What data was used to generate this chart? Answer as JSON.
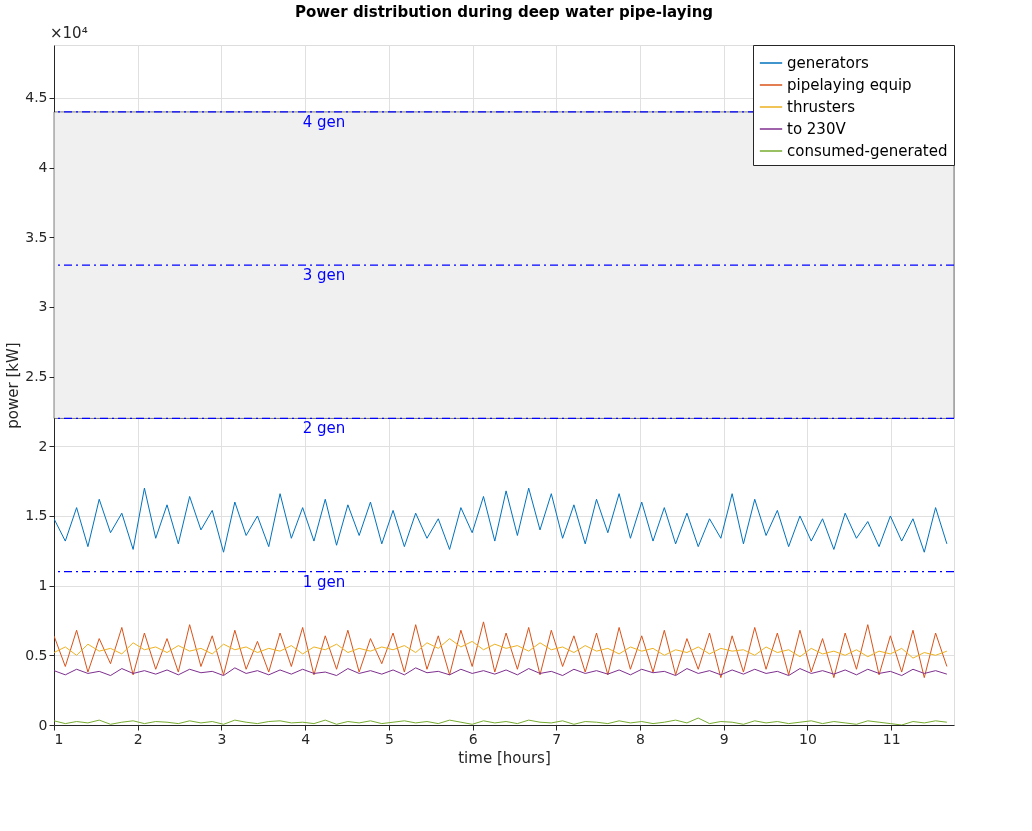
{
  "chart_data": {
    "type": "line",
    "title": "Power distribution during deep water pipe-laying",
    "xlabel": "time [hours]",
    "ylabel": "power [kW]",
    "annotations": [
      "×10⁴"
    ],
    "x": [
      1,
      1.135,
      1.27,
      1.405,
      1.54,
      1.675,
      1.81,
      1.945,
      2.08,
      2.215,
      2.35,
      2.485,
      2.62,
      2.755,
      2.89,
      3.025,
      3.16,
      3.295,
      3.43,
      3.565,
      3.7,
      3.835,
      3.97,
      4.105,
      4.24,
      4.375,
      4.51,
      4.645,
      4.78,
      4.915,
      5.05,
      5.185,
      5.32,
      5.455,
      5.59,
      5.725,
      5.86,
      5.995,
      6.13,
      6.265,
      6.4,
      6.535,
      6.67,
      6.805,
      6.94,
      7.075,
      7.21,
      7.345,
      7.48,
      7.615,
      7.75,
      7.885,
      8.02,
      8.155,
      8.29,
      8.425,
      8.56,
      8.695,
      8.83,
      8.965,
      9.1,
      9.235,
      9.37,
      9.505,
      9.64,
      9.775,
      9.91,
      10.045,
      10.18,
      10.315,
      10.45,
      10.585,
      10.72,
      10.855,
      10.99,
      11.125,
      11.26,
      11.395,
      11.53,
      11.665
    ],
    "series": [
      {
        "name": "generators",
        "color": "#0072bd",
        "values": [
          1.48,
          1.32,
          1.56,
          1.28,
          1.62,
          1.38,
          1.52,
          1.26,
          1.7,
          1.34,
          1.58,
          1.3,
          1.64,
          1.4,
          1.54,
          1.24,
          1.6,
          1.36,
          1.5,
          1.28,
          1.66,
          1.34,
          1.56,
          1.32,
          1.62,
          1.29,
          1.58,
          1.36,
          1.6,
          1.3,
          1.54,
          1.28,
          1.52,
          1.34,
          1.48,
          1.26,
          1.56,
          1.38,
          1.64,
          1.32,
          1.68,
          1.36,
          1.7,
          1.4,
          1.66,
          1.34,
          1.58,
          1.3,
          1.62,
          1.38,
          1.66,
          1.34,
          1.6,
          1.32,
          1.56,
          1.3,
          1.52,
          1.28,
          1.48,
          1.34,
          1.66,
          1.3,
          1.62,
          1.36,
          1.54,
          1.28,
          1.5,
          1.32,
          1.48,
          1.26,
          1.52,
          1.34,
          1.46,
          1.28,
          1.5,
          1.32,
          1.48,
          1.24,
          1.56,
          1.3
        ]
      },
      {
        "name": "pipelaying equip",
        "color": "#d95319",
        "values": [
          0.64,
          0.42,
          0.68,
          0.38,
          0.62,
          0.44,
          0.7,
          0.36,
          0.66,
          0.4,
          0.62,
          0.38,
          0.72,
          0.42,
          0.64,
          0.36,
          0.68,
          0.4,
          0.6,
          0.38,
          0.66,
          0.42,
          0.7,
          0.36,
          0.64,
          0.4,
          0.68,
          0.38,
          0.62,
          0.44,
          0.66,
          0.38,
          0.72,
          0.4,
          0.64,
          0.36,
          0.68,
          0.42,
          0.74,
          0.38,
          0.66,
          0.4,
          0.7,
          0.36,
          0.68,
          0.42,
          0.64,
          0.38,
          0.66,
          0.36,
          0.7,
          0.4,
          0.64,
          0.38,
          0.68,
          0.36,
          0.62,
          0.4,
          0.66,
          0.34,
          0.64,
          0.38,
          0.7,
          0.4,
          0.66,
          0.36,
          0.68,
          0.38,
          0.62,
          0.34,
          0.66,
          0.4,
          0.72,
          0.36,
          0.64,
          0.38,
          0.68,
          0.34,
          0.66,
          0.42
        ]
      },
      {
        "name": "thrusters",
        "color": "#edb120",
        "values": [
          0.52,
          0.56,
          0.5,
          0.58,
          0.53,
          0.55,
          0.51,
          0.59,
          0.54,
          0.56,
          0.52,
          0.57,
          0.53,
          0.55,
          0.51,
          0.58,
          0.54,
          0.56,
          0.52,
          0.55,
          0.53,
          0.57,
          0.51,
          0.56,
          0.54,
          0.58,
          0.52,
          0.55,
          0.53,
          0.56,
          0.54,
          0.57,
          0.52,
          0.59,
          0.55,
          0.62,
          0.56,
          0.6,
          0.54,
          0.58,
          0.55,
          0.57,
          0.53,
          0.59,
          0.54,
          0.56,
          0.52,
          0.57,
          0.53,
          0.55,
          0.51,
          0.56,
          0.53,
          0.55,
          0.5,
          0.54,
          0.52,
          0.56,
          0.51,
          0.55,
          0.53,
          0.54,
          0.5,
          0.56,
          0.52,
          0.54,
          0.49,
          0.55,
          0.51,
          0.53,
          0.5,
          0.54,
          0.49,
          0.53,
          0.51,
          0.55,
          0.48,
          0.52,
          0.5,
          0.53
        ]
      },
      {
        "name": "to 230V",
        "color": "#7e2f8e",
        "values": [
          0.39,
          0.36,
          0.4,
          0.37,
          0.385,
          0.355,
          0.405,
          0.37,
          0.39,
          0.365,
          0.395,
          0.36,
          0.4,
          0.375,
          0.385,
          0.355,
          0.41,
          0.37,
          0.39,
          0.36,
          0.395,
          0.365,
          0.4,
          0.37,
          0.38,
          0.355,
          0.405,
          0.37,
          0.39,
          0.365,
          0.395,
          0.36,
          0.41,
          0.375,
          0.385,
          0.36,
          0.4,
          0.37,
          0.39,
          0.365,
          0.395,
          0.36,
          0.405,
          0.37,
          0.385,
          0.355,
          0.4,
          0.37,
          0.39,
          0.365,
          0.395,
          0.36,
          0.4,
          0.375,
          0.385,
          0.355,
          0.405,
          0.37,
          0.39,
          0.36,
          0.395,
          0.365,
          0.4,
          0.37,
          0.385,
          0.355,
          0.405,
          0.37,
          0.39,
          0.365,
          0.395,
          0.36,
          0.4,
          0.37,
          0.385,
          0.355,
          0.4,
          0.37,
          0.39,
          0.365
        ]
      },
      {
        "name": "consumed-generated",
        "color": "#77ac30",
        "values": [
          0.03,
          0.01,
          0.025,
          0.015,
          0.035,
          0.005,
          0.02,
          0.03,
          0.01,
          0.025,
          0.02,
          0.01,
          0.03,
          0.015,
          0.025,
          0.005,
          0.035,
          0.02,
          0.01,
          0.025,
          0.03,
          0.015,
          0.02,
          0.01,
          0.035,
          0.005,
          0.025,
          0.015,
          0.03,
          0.01,
          0.02,
          0.03,
          0.015,
          0.025,
          0.01,
          0.035,
          0.02,
          0.005,
          0.03,
          0.015,
          0.025,
          0.01,
          0.035,
          0.02,
          0.015,
          0.03,
          0.005,
          0.025,
          0.02,
          0.01,
          0.03,
          0.015,
          0.025,
          0.01,
          0.02,
          0.035,
          0.015,
          0.05,
          0.01,
          0.025,
          0.02,
          0.005,
          0.03,
          0.015,
          0.025,
          0.01,
          0.02,
          0.03,
          0.01,
          0.025,
          0.015,
          0.005,
          0.03,
          0.02,
          0.01,
          0,
          0.025,
          0.015,
          0.03,
          0.02
        ]
      }
    ],
    "xlim": [
      1,
      11.75
    ],
    "xticks": [
      1,
      2,
      3,
      4,
      5,
      6,
      7,
      8,
      9,
      10,
      11
    ],
    "ylim": [
      0,
      4.88
    ],
    "yticks": [
      0,
      0.5,
      1,
      1.5,
      2,
      2.5,
      3,
      3.5,
      4,
      4.5
    ],
    "ref_lines": [
      {
        "axis": "y",
        "value": 1.1,
        "label": "1 gen",
        "color": "#0000ff",
        "line_style": "dashed"
      },
      {
        "axis": "y",
        "value": 2.2,
        "label": "2 gen",
        "color": "#0000ff",
        "line_style": "dashed"
      },
      {
        "axis": "y",
        "value": 3.3,
        "label": "3 gen",
        "color": "#0000ff",
        "line_style": "dashed"
      },
      {
        "axis": "y",
        "value": 4.4,
        "label": "4 gen",
        "color": "#0000ff",
        "line_style": "dashed"
      }
    ],
    "bands": [
      {
        "axis": "y",
        "from": 2.2,
        "to": 4.4,
        "color": "#f0f0f0"
      }
    ],
    "grid": true,
    "legend": "top right",
    "line_style": "solid",
    "marker": "none"
  }
}
